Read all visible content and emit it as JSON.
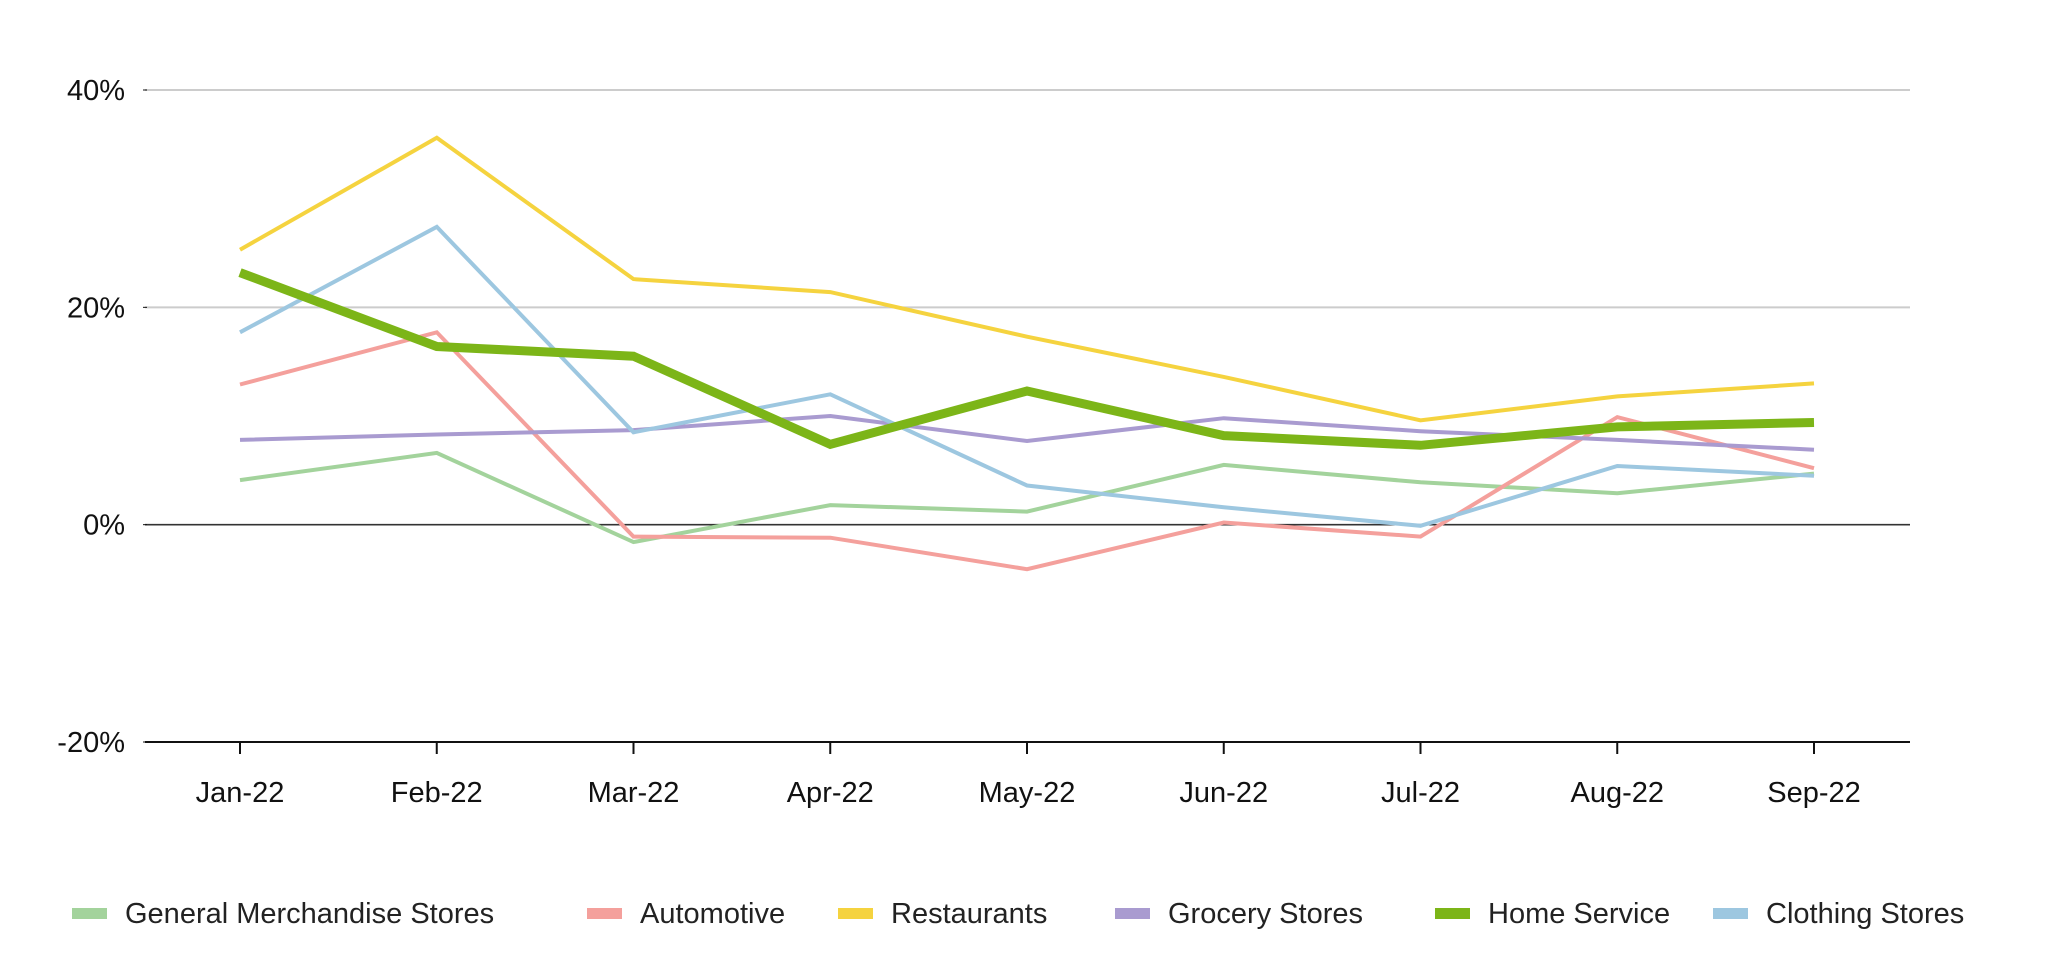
{
  "chart_data": {
    "type": "line",
    "title": "",
    "xlabel": "",
    "ylabel": "",
    "categories": [
      "Jan-22",
      "Feb-22",
      "Mar-22",
      "Apr-22",
      "May-22",
      "Jun-22",
      "Jul-22",
      "Aug-22",
      "Sep-22"
    ],
    "ylim": [
      -20,
      40
    ],
    "yticks": [
      -20,
      0,
      20,
      40
    ],
    "ytick_labels": [
      "-20%",
      "0%",
      "20%",
      "40%"
    ],
    "grid": true,
    "legend_position": "bottom",
    "series": [
      {
        "name": "General Merchandise Stores",
        "color": "#a3d39c",
        "emphasis": false,
        "values": [
          4.1,
          6.6,
          -1.6,
          1.8,
          1.2,
          5.5,
          3.9,
          2.9,
          4.7
        ]
      },
      {
        "name": "Automotive",
        "color": "#f4a09c",
        "emphasis": false,
        "values": [
          12.9,
          17.7,
          -1.1,
          -1.2,
          -4.1,
          0.2,
          -1.1,
          9.9,
          5.2
        ]
      },
      {
        "name": "Restaurants",
        "color": "#f5d33f",
        "emphasis": false,
        "values": [
          25.3,
          35.6,
          22.6,
          21.4,
          17.3,
          13.6,
          9.6,
          11.8,
          13.0
        ]
      },
      {
        "name": "Grocery Stores",
        "color": "#a99bd0",
        "emphasis": false,
        "values": [
          7.8,
          8.3,
          8.7,
          10.0,
          7.7,
          9.8,
          8.6,
          7.8,
          6.9
        ]
      },
      {
        "name": "Home Service",
        "color": "#7cb518",
        "emphasis": true,
        "values": [
          23.2,
          16.4,
          15.5,
          7.4,
          12.3,
          8.2,
          7.3,
          9.0,
          9.4
        ]
      },
      {
        "name": "Clothing Stores",
        "color": "#9dc7e0",
        "emphasis": false,
        "values": [
          17.7,
          27.4,
          8.5,
          12.0,
          3.6,
          1.6,
          -0.1,
          5.4,
          4.5
        ]
      }
    ]
  }
}
